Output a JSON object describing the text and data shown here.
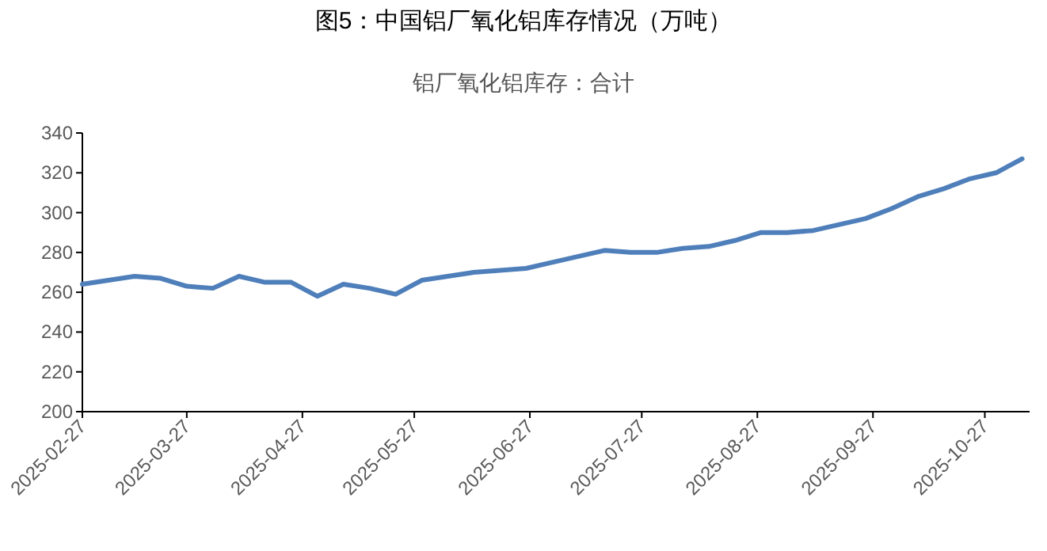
{
  "chart_data": {
    "type": "line",
    "title": "图5：中国铝厂氧化铝库存情况（万吨）",
    "subtitle": "铝厂氧化铝库存：合计",
    "x": [
      "2025-02-27",
      "2025-03-06",
      "2025-03-13",
      "2025-03-20",
      "2025-03-27",
      "2025-04-03",
      "2025-04-10",
      "2025-04-17",
      "2025-04-24",
      "2025-05-01",
      "2025-05-08",
      "2025-05-15",
      "2025-05-22",
      "2025-05-29",
      "2025-06-05",
      "2025-06-12",
      "2025-06-19",
      "2025-06-26",
      "2025-07-03",
      "2025-07-10",
      "2025-07-17",
      "2025-07-24",
      "2025-07-31",
      "2025-08-07",
      "2025-08-14",
      "2025-08-21",
      "2025-08-28",
      "2025-09-04",
      "2025-09-11",
      "2025-09-18",
      "2025-09-25",
      "2025-10-02",
      "2025-10-09",
      "2025-10-16",
      "2025-10-23",
      "2025-10-30",
      "2025-11-06"
    ],
    "series": [
      {
        "color": "#4f7fba",
        "values": [
          264,
          266,
          268,
          267,
          263,
          262,
          268,
          265,
          265,
          258,
          264,
          262,
          259,
          266,
          268,
          270,
          271,
          272,
          275,
          278,
          281,
          280,
          280,
          282,
          283,
          286,
          290,
          290,
          291,
          294,
          297,
          302,
          308,
          312,
          317,
          320,
          327
        ]
      }
    ],
    "xlim": [
      "2025-02-27",
      "2025-11-08"
    ],
    "xticks": [
      "2025-02-27",
      "2025-03-27",
      "2025-04-27",
      "2025-05-27",
      "2025-06-27",
      "2025-07-27",
      "2025-08-27",
      "2025-09-27",
      "2025-10-27"
    ],
    "ylim": [
      200,
      340
    ],
    "yticks": [
      200,
      220,
      240,
      260,
      280,
      300,
      320,
      340
    ],
    "grid": false,
    "marker": "none",
    "line_style": "solid"
  }
}
